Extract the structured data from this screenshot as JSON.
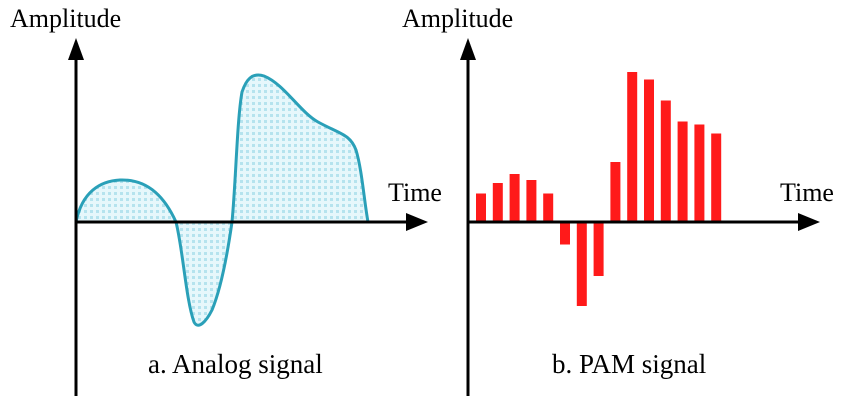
{
  "analog_panel": {
    "y_axis_label": "Amplitude",
    "x_axis_label": "Time",
    "caption": "a. Analog signal",
    "curve_color": "#2aa0b8",
    "fill_color": "#cdeef5"
  },
  "pam_panel": {
    "y_axis_label": "Amplitude",
    "x_axis_label": "Time",
    "caption": "b. PAM signal",
    "pulse_color": "#ff1a1a",
    "pulse_values": [
      0.19,
      0.26,
      0.32,
      0.28,
      0.19,
      -0.15,
      -0.56,
      -0.36,
      0.4,
      1.0,
      0.95,
      0.81,
      0.67,
      0.65,
      0.59
    ]
  }
}
